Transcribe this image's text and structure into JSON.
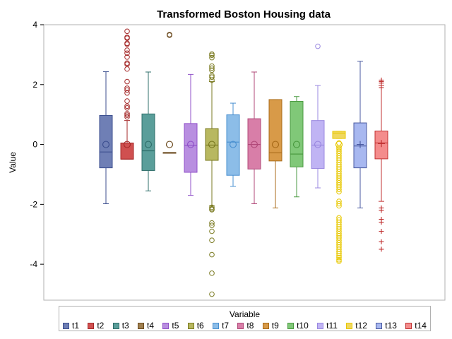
{
  "chart_data": {
    "type": "box",
    "title": "Transformed Boston Housing data",
    "xlabel": "",
    "ylabel": "Value",
    "ylim": [
      -5.2,
      4.0
    ],
    "yticks": [
      -4,
      -2,
      0,
      2,
      4
    ],
    "grid": false,
    "legend": {
      "title": "Variable",
      "placement": "bottom",
      "entries": [
        "t1",
        "t2",
        "t3",
        "t4",
        "t5",
        "t6",
        "t7",
        "t8",
        "t9",
        "t10",
        "t11",
        "t12",
        "t13",
        "t14"
      ]
    },
    "series": [
      {
        "name": "t1",
        "color": "#6f7fb5",
        "edge": "#3c4f8f",
        "marker": "circle",
        "min": -1.98,
        "q1": -0.78,
        "median": -0.25,
        "q3": 0.97,
        "max": 2.43,
        "mean": 0.0,
        "outliers": []
      },
      {
        "name": "t2",
        "color": "#d05050",
        "edge": "#a52a2a",
        "marker": "circle",
        "min": -0.49,
        "q1": -0.49,
        "median": -0.49,
        "q3": 0.05,
        "max": 0.8,
        "mean": 0.0,
        "outliers": [
          0.92,
          0.98,
          1.03,
          1.22,
          1.28,
          1.45,
          1.72,
          1.82,
          1.88,
          2.1,
          2.52,
          2.68,
          2.72,
          2.92,
          3.05,
          3.15,
          3.35,
          3.38,
          3.55,
          3.58,
          3.78
        ]
      },
      {
        "name": "t3",
        "color": "#5a9e9a",
        "edge": "#2f6f6b",
        "marker": "circle",
        "min": -1.55,
        "q1": -0.87,
        "median": -0.21,
        "q3": 1.02,
        "max": 2.42,
        "mean": 0.0,
        "outliers": []
      },
      {
        "name": "t4",
        "color": "#a08050",
        "edge": "#6b4a1e",
        "marker": "circle",
        "min": -0.27,
        "q1": -0.27,
        "median": -0.27,
        "q3": -0.27,
        "max": -0.27,
        "mean": 0.0,
        "outliers": [
          3.65,
          3.66,
          3.67
        ]
      },
      {
        "name": "t5",
        "color": "#b88ee0",
        "edge": "#9050c8",
        "marker": "circle",
        "min": -1.7,
        "q1": -0.93,
        "median": -0.03,
        "q3": 0.7,
        "max": 2.34,
        "mean": 0.0,
        "outliers": []
      },
      {
        "name": "t6",
        "color": "#b8b860",
        "edge": "#7a7a20",
        "marker": "circle",
        "min": -2.05,
        "q1": -0.53,
        "median": -0.02,
        "q3": 0.53,
        "max": 2.1,
        "mean": 0.0,
        "outliers": [
          -5.0,
          -4.3,
          -3.68,
          -3.2,
          -2.9,
          -2.7,
          -2.62,
          -2.18,
          -2.15,
          -2.1,
          2.15,
          2.25,
          2.3,
          2.48,
          2.55,
          2.62,
          2.9,
          2.98,
          3.02
        ]
      },
      {
        "name": "t7",
        "color": "#8cbde8",
        "edge": "#4a90d0",
        "marker": "circle",
        "min": -1.4,
        "q1": -1.03,
        "median": 0.08,
        "q3": 0.99,
        "max": 1.38,
        "mean": 0.0,
        "outliers": []
      },
      {
        "name": "t8",
        "color": "#d87ea8",
        "edge": "#b04878",
        "marker": "circle",
        "min": -1.98,
        "q1": -0.82,
        "median": 0.0,
        "q3": 0.86,
        "max": 2.42,
        "mean": 0.0,
        "outliers": []
      },
      {
        "name": "t9",
        "color": "#d89a48",
        "edge": "#a86a18",
        "marker": "circle",
        "min": -2.12,
        "q1": -0.55,
        "median": -0.28,
        "q3": 1.5,
        "max": 1.5,
        "mean": 0.0,
        "outliers": []
      },
      {
        "name": "t10",
        "color": "#80c878",
        "edge": "#4a9a40",
        "marker": "circle",
        "min": -1.75,
        "q1": -0.75,
        "median": -0.32,
        "q3": 1.44,
        "max": 1.6,
        "mean": 0.0,
        "outliers": []
      },
      {
        "name": "t11",
        "color": "#c0b4f4",
        "edge": "#9a88e0",
        "marker": "circle",
        "min": -1.45,
        "q1": -0.8,
        "median": -0.02,
        "q3": 0.8,
        "max": 1.97,
        "mean": 0.0,
        "outliers": [
          3.28
        ]
      },
      {
        "name": "t12",
        "color": "#f0d860",
        "edge": "#e8c800",
        "marker": "circle",
        "min": 0.2,
        "q1": 0.2,
        "median": 0.38,
        "q3": 0.44,
        "max": 0.44,
        "mean": 0.0,
        "outliers": [
          0.05,
          -0.1,
          -0.15,
          -0.22,
          -0.3,
          -0.38,
          -0.45,
          -0.52,
          -0.6,
          -0.68,
          -0.75,
          -0.82,
          -0.9,
          -0.98,
          -1.05,
          -1.12,
          -1.2,
          -1.28,
          -1.35,
          -1.42,
          -1.5,
          -1.58,
          -1.9,
          -1.98,
          -2.05,
          -2.45,
          -2.52,
          -2.6,
          -2.68,
          -2.75,
          -2.82,
          -2.9,
          -2.98,
          -3.05,
          -3.12,
          -3.2,
          -3.28,
          -3.35,
          -3.42,
          -3.5,
          -3.58,
          -3.65,
          -3.72,
          -3.78,
          -3.85,
          -3.9
        ]
      },
      {
        "name": "t13",
        "color": "#a8b8f0",
        "edge": "#4a5aa0",
        "marker": "plus",
        "min": -2.12,
        "q1": -0.78,
        "median": -0.05,
        "q3": 0.72,
        "max": 2.78,
        "mean": 0.0,
        "outliers": []
      },
      {
        "name": "t14",
        "color": "#f48c8c",
        "edge": "#c03030",
        "marker": "plus",
        "min": -1.9,
        "q1": -0.48,
        "median": 0.05,
        "q3": 0.45,
        "max": 1.97,
        "mean": 0.03,
        "outliers": [
          2.05,
          2.1,
          2.15,
          1.9,
          -2.12,
          -2.2,
          -2.5,
          -2.6,
          -2.9,
          -3.25,
          -3.5
        ]
      }
    ]
  }
}
